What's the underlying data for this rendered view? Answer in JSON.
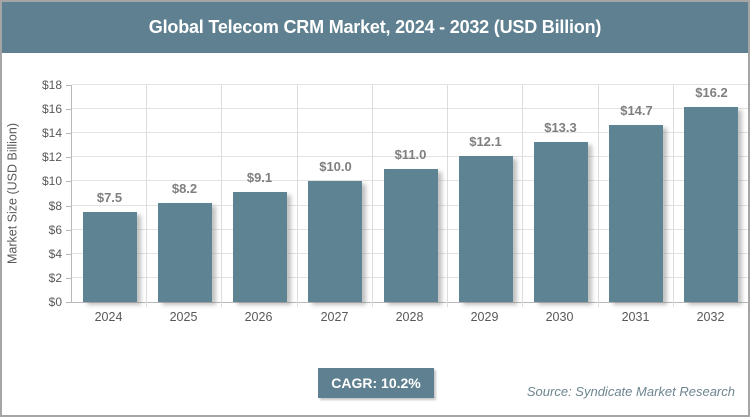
{
  "header": {
    "title": "Global Telecom CRM Market, 2024 - 2032 (USD Billion)"
  },
  "chart_data": {
    "type": "bar",
    "title": "Global Telecom CRM Market, 2024 - 2032 (USD Billion)",
    "categories": [
      "2024",
      "2025",
      "2026",
      "2027",
      "2028",
      "2029",
      "2030",
      "2031",
      "2032"
    ],
    "values": [
      7.5,
      8.2,
      9.1,
      10.0,
      11.0,
      12.1,
      13.3,
      14.7,
      16.2
    ],
    "value_labels": [
      "$7.5",
      "$8.2",
      "$9.1",
      "$10.0",
      "$11.0",
      "$12.1",
      "$13.3",
      "$14.7",
      "$16.2"
    ],
    "xlabel": "",
    "ylabel": "Market Size (USD Billion)",
    "ylim": [
      0,
      18
    ],
    "ytick_step": 2,
    "ytick_labels": [
      "$0",
      "$2",
      "$4",
      "$6",
      "$8",
      "$10",
      "$12",
      "$14",
      "$16",
      "$18"
    ],
    "grid": true,
    "legend_position": "none"
  },
  "footer": {
    "cagr_label": "CAGR: 10.2%",
    "source": "Source: Syndicate Market Research"
  },
  "colors": {
    "header_bg": "#5e8090",
    "bar": "#5e8494",
    "badge_bg": "#5e8090",
    "axis_text": "#595959",
    "value_label_text": "#7f7f7f",
    "source_text": "#6e8590",
    "gridline": "#e3e3e3",
    "axis_line": "#b8b8b8",
    "border": "#a5a5a5"
  }
}
